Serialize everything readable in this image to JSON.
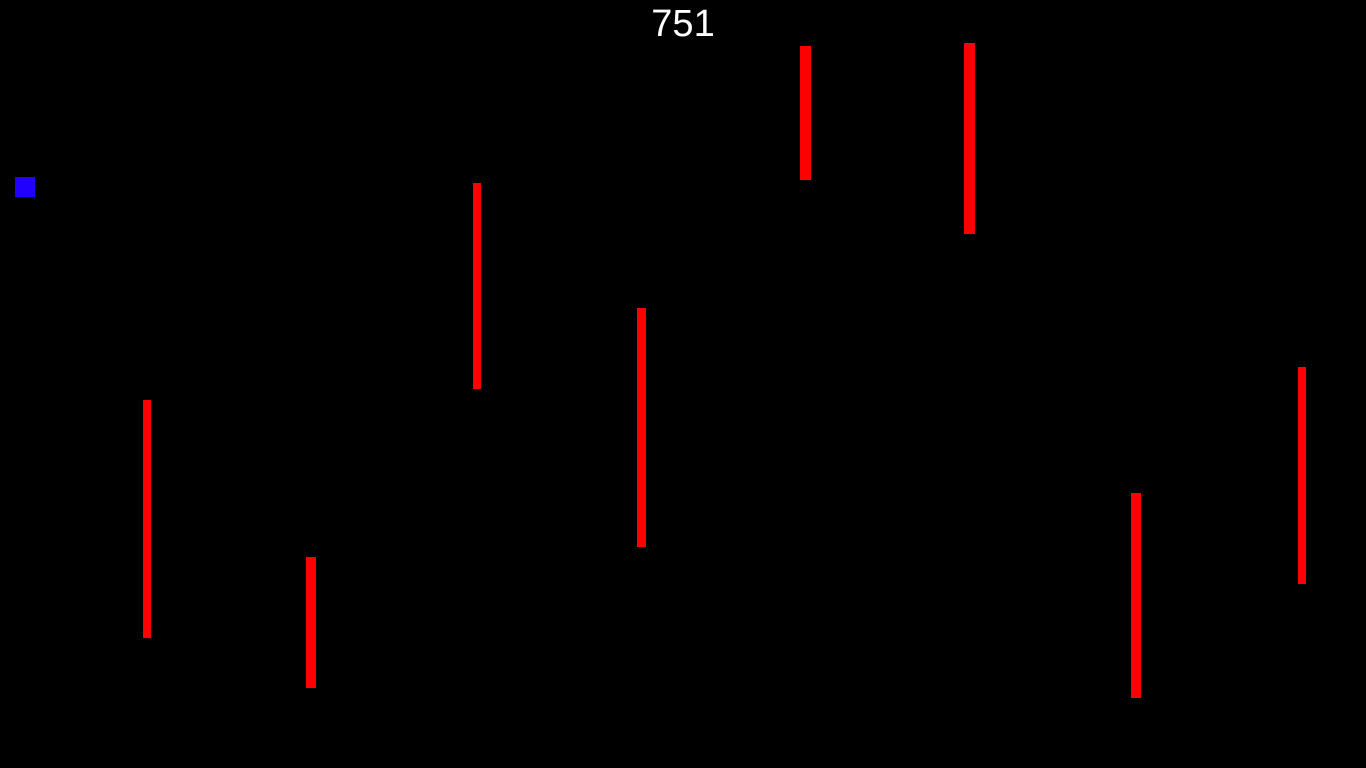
{
  "game": {
    "score": "751",
    "colors": {
      "background": "#000000",
      "score_text": "#ffffff",
      "player": "#2200ff",
      "obstacle": "#ff0000"
    },
    "player": {
      "icon": "blue-square"
    },
    "obstacle_count": 8
  }
}
